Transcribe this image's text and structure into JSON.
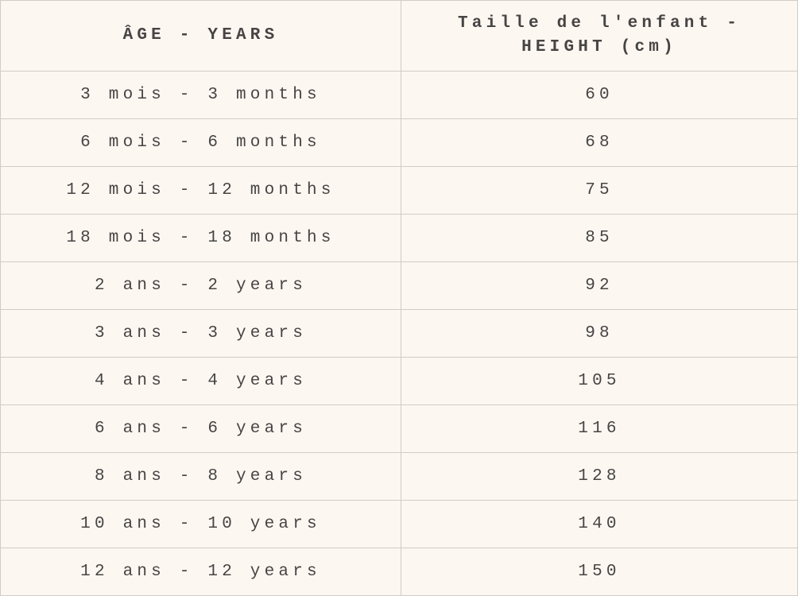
{
  "table": {
    "headers": [
      "ÂGE - YEARS",
      "Taille de l'enfant -\nHEIGHT (cm)"
    ],
    "rows": [
      [
        "3 mois - 3 months",
        "60"
      ],
      [
        "6 mois - 6 months",
        "68"
      ],
      [
        "12 mois - 12 months",
        "75"
      ],
      [
        "18 mois - 18 months",
        "85"
      ],
      [
        "2 ans - 2 years",
        "92"
      ],
      [
        "3 ans - 3 years",
        "98"
      ],
      [
        "4 ans - 4 years",
        "105"
      ],
      [
        "6 ans - 6 years",
        "116"
      ],
      [
        "8 ans - 8 years",
        "128"
      ],
      [
        "10 ans - 10 years",
        "140"
      ],
      [
        "12 ans - 12 years",
        "150"
      ]
    ]
  }
}
